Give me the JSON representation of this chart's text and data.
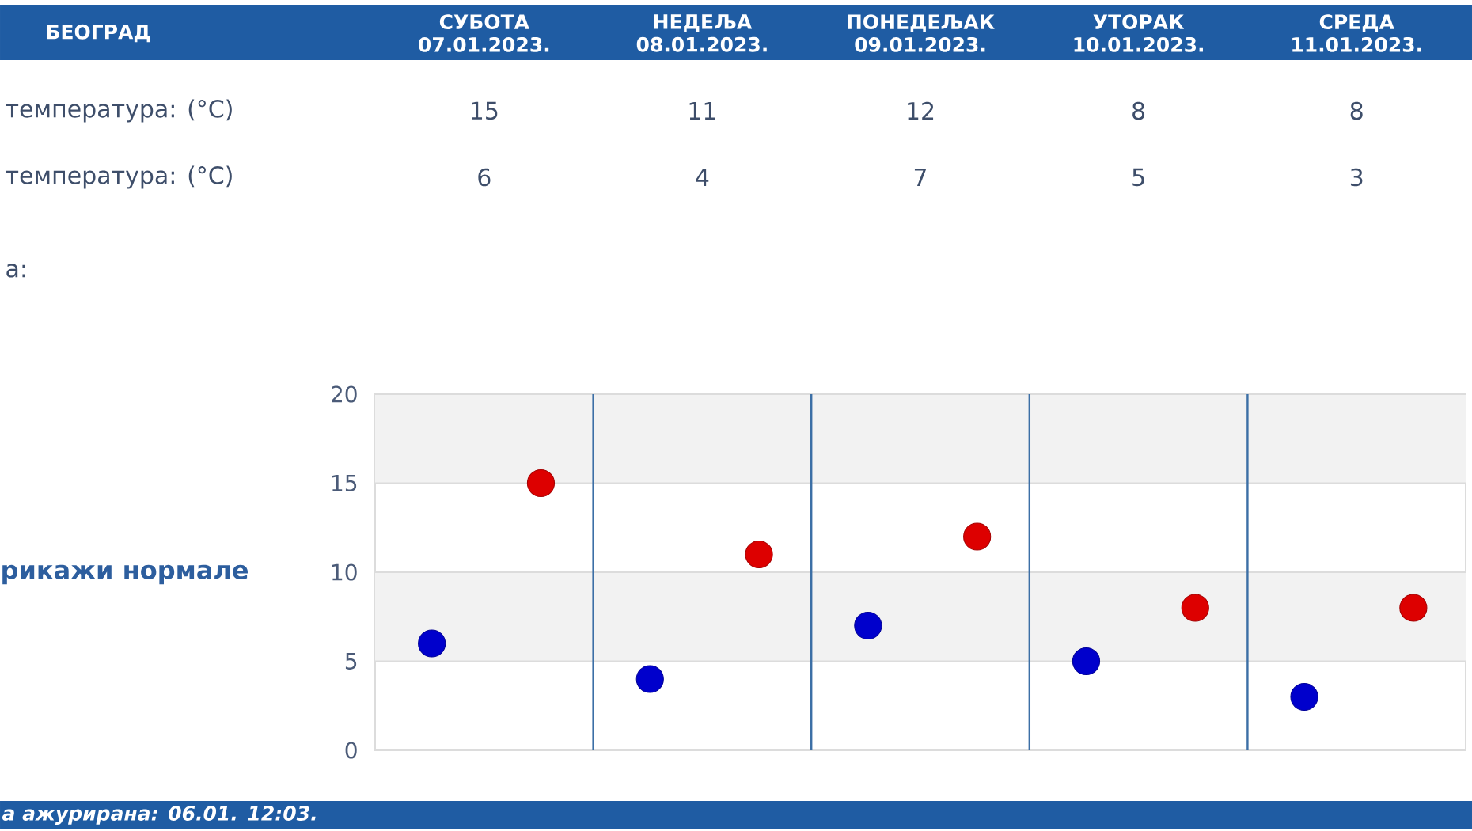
{
  "chart_data": {
    "type": "scatter",
    "title": "БЕОГРАД",
    "categories": [
      null,
      null,
      null,
      null,
      null
    ],
    "series": [
      {
        "color": "#0000cc",
        "values": [
          6,
          4,
          7,
          5,
          3
        ]
      },
      {
        "color": "#dd0000",
        "values": [
          15,
          11,
          12,
          8,
          8
        ]
      }
    ],
    "ylim": [
      0,
      20
    ],
    "yticks": [
      0,
      5,
      10,
      15,
      20
    ],
    "grid": true,
    "marker": "circle",
    "data_labels": true,
    "bands": [
      {
        "axis": "y",
        "from": 15,
        "to": 20,
        "color": "#f2f2f2"
      },
      {
        "axis": "y",
        "from": 5,
        "to": 10,
        "color": "#f2f2f2"
      }
    ],
    "annotations": [
      "СУБОТА 07.01.2023.",
      "НЕДЕЉА 08.01.2023.",
      "ПОНЕДЕЉАК 09.01.2023.",
      "УТОРАК 10.01.2023.",
      "СРЕДА 11.01.2023.",
      "температура: (°C)",
      "температура: (°C)",
      "а:",
      "рикажи нормале",
      "а ажурирана: 06.01. 12:03."
    ]
  }
}
